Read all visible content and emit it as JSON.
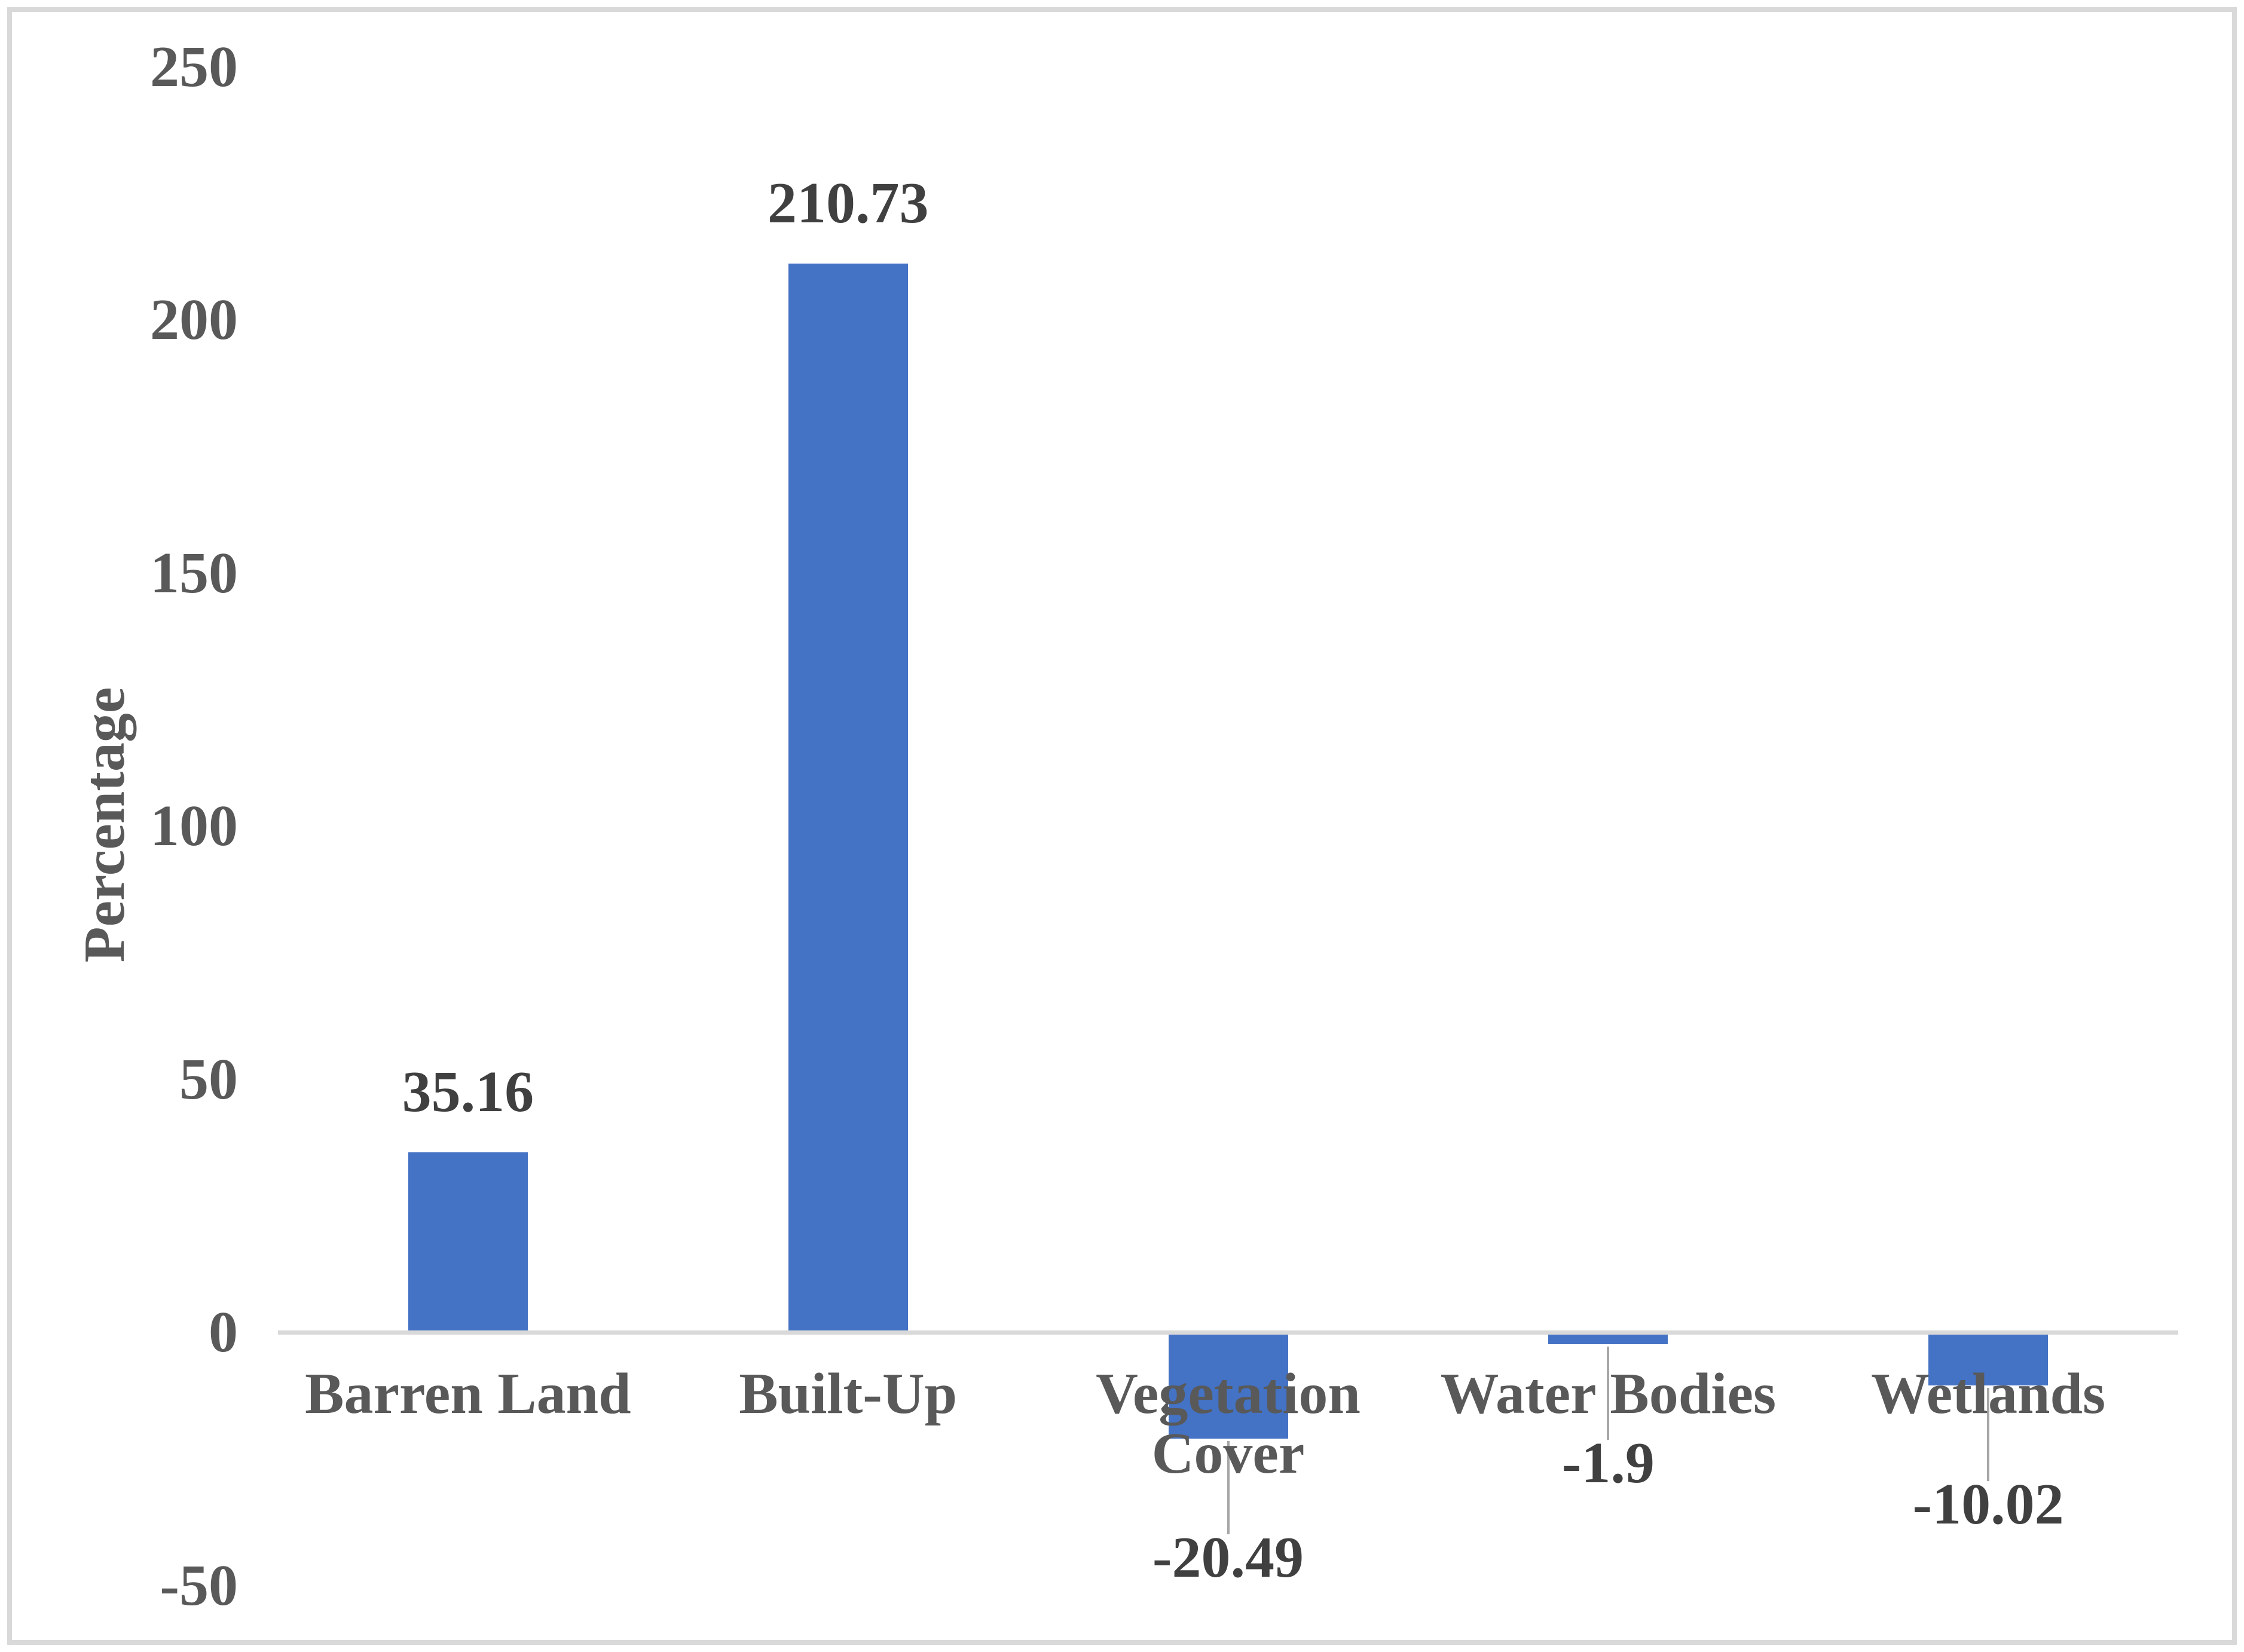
{
  "chart_data": {
    "type": "bar",
    "title": "",
    "xlabel": "",
    "ylabel": "Percentage",
    "categories": [
      "Barren Land",
      "Built-Up",
      "Vegetation Cover",
      "Water Bodies",
      "Wetlands"
    ],
    "values": [
      35.16,
      210.73,
      -20.49,
      -1.9,
      -10.02
    ],
    "data_labels": [
      "35.16",
      "210.73",
      "-20.49",
      "-1.9",
      "-10.02"
    ],
    "yticks": [
      250,
      200,
      150,
      100,
      50,
      0,
      -50
    ],
    "ytick_labels": [
      "250",
      "200",
      "150",
      "100",
      "50",
      "0",
      "-50"
    ],
    "ylim": [
      -50,
      250
    ],
    "grid": false,
    "legend": false,
    "colors": {
      "bar": "#4472C4",
      "tick_text": "#595959",
      "category_text": "#595959",
      "data_label_text": "#404040",
      "axis_title_text": "#595959",
      "axis_line": "#D9D9D9",
      "leader_line": "#A6A6A6",
      "border": "#D9D9D9"
    }
  }
}
